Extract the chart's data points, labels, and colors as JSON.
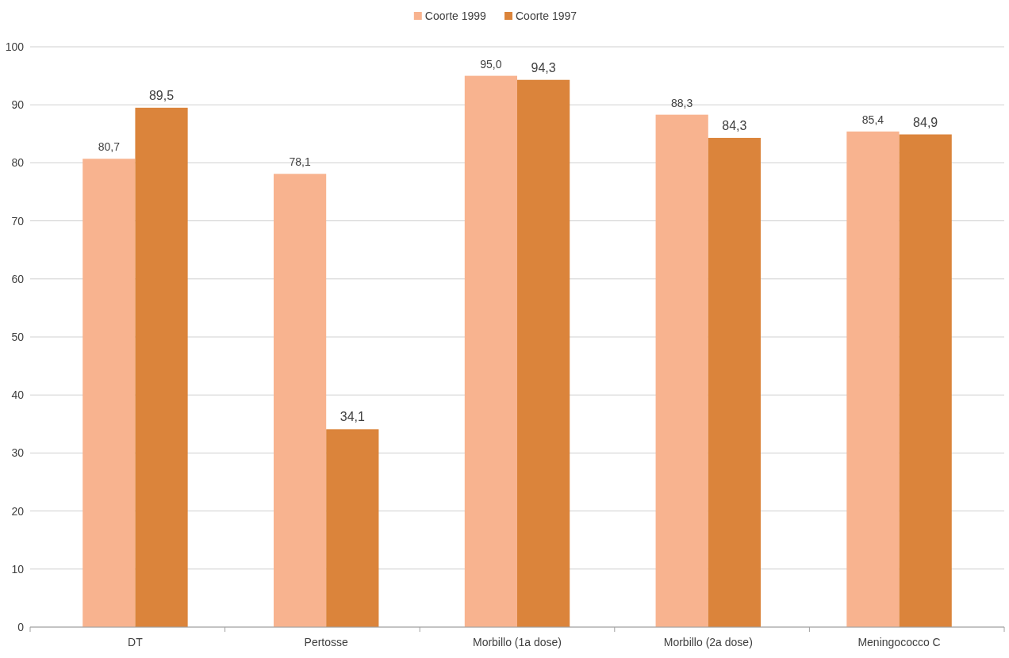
{
  "chart_data": {
    "type": "bar",
    "categories": [
      "DT",
      "Pertosse",
      "Morbillo (1a dose)",
      "Morbillo (2a dose)",
      "Meningococco C"
    ],
    "series": [
      {
        "name": "Coorte 1999",
        "color": "#f8b38f",
        "values": [
          80.7,
          78.1,
          95.0,
          88.3,
          85.4
        ],
        "value_labels": [
          "80,7",
          "78,1",
          "95,0",
          "88,3",
          "85,4"
        ]
      },
      {
        "name": "Coorte 1997",
        "color": "#db843b",
        "values": [
          89.5,
          34.1,
          94.3,
          84.3,
          84.9
        ],
        "value_labels": [
          "89,5",
          "34,1",
          "94,3",
          "84,3",
          "84,9"
        ]
      }
    ],
    "ylim": [
      0,
      100
    ],
    "yticks": [
      0,
      10,
      20,
      30,
      40,
      50,
      60,
      70,
      80,
      90,
      100
    ],
    "grid": "y",
    "legend": "top"
  }
}
